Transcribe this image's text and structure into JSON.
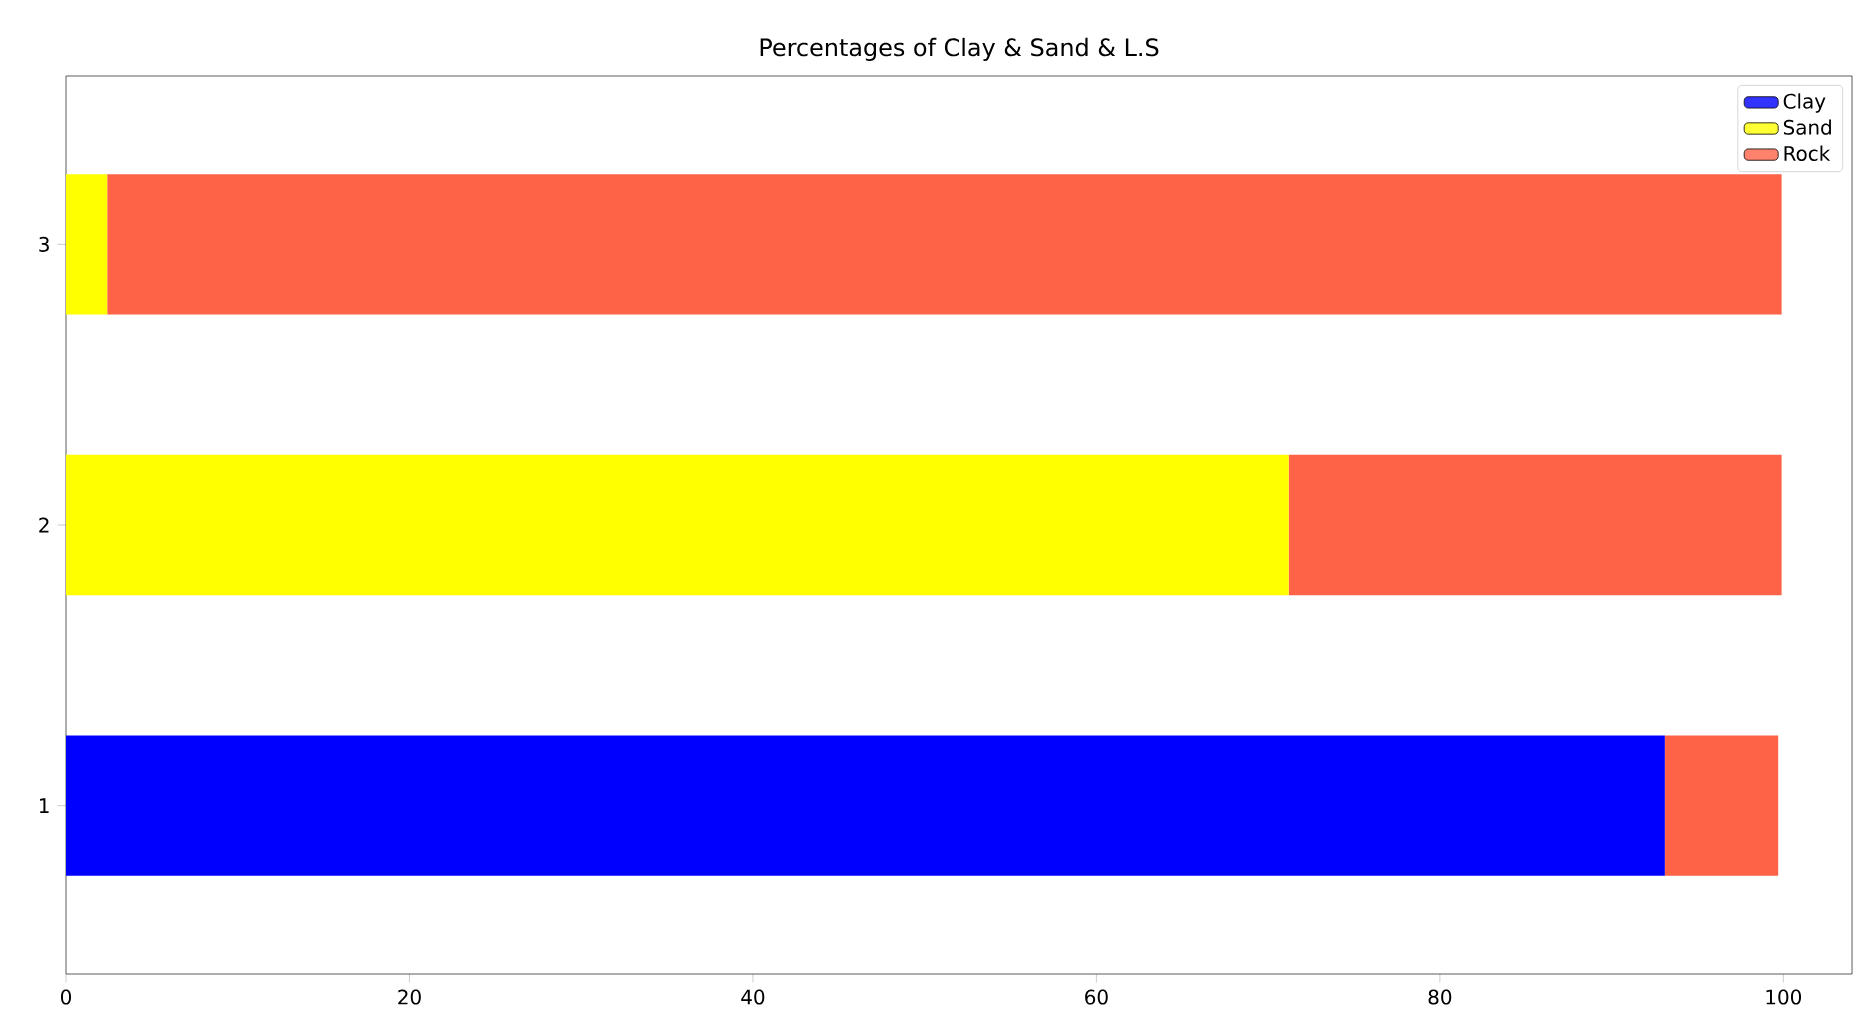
{
  "chart_data": {
    "type": "bar",
    "orientation": "horizontal",
    "stacked": true,
    "title": "Percentages of Clay & Sand & L.S",
    "categories": [
      "3",
      "2",
      "1"
    ],
    "series": [
      {
        "name": "Clay",
        "color": "#0000ff",
        "values": [
          0,
          0,
          93.1
        ]
      },
      {
        "name": "Sand",
        "color": "#ffff00",
        "values": [
          2.4,
          71.2,
          0
        ]
      },
      {
        "name": "Rock",
        "color": "#ff6347",
        "values": [
          97.5,
          28.7,
          6.6
        ]
      }
    ],
    "xlim": [
      0,
      104
    ],
    "xticks": [
      0,
      20,
      40,
      60,
      80,
      100
    ],
    "legend": "top right"
  }
}
